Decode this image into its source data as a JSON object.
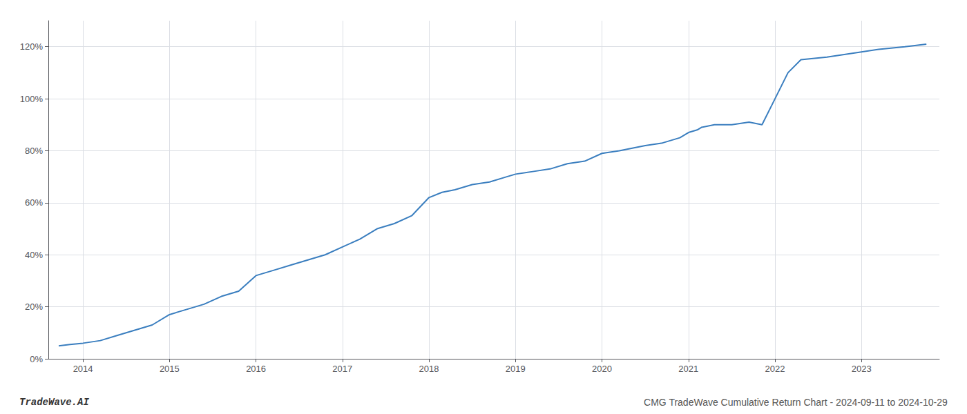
{
  "chart_data": {
    "type": "line",
    "x": [
      2013.72,
      2013.85,
      2014.0,
      2014.2,
      2014.4,
      2014.6,
      2014.8,
      2015.0,
      2015.2,
      2015.4,
      2015.6,
      2015.8,
      2016.0,
      2016.2,
      2016.4,
      2016.6,
      2016.8,
      2017.0,
      2017.2,
      2017.4,
      2017.6,
      2017.8,
      2018.0,
      2018.15,
      2018.3,
      2018.5,
      2018.7,
      2018.9,
      2019.0,
      2019.2,
      2019.4,
      2019.6,
      2019.8,
      2020.0,
      2020.2,
      2020.5,
      2020.7,
      2020.9,
      2021.0,
      2021.1,
      2021.15,
      2021.3,
      2021.5,
      2021.7,
      2021.85,
      2022.0,
      2022.15,
      2022.3,
      2022.6,
      2022.8,
      2023.0,
      2023.2,
      2023.5,
      2023.75
    ],
    "values": [
      5,
      5.5,
      6,
      7,
      9,
      11,
      13,
      17,
      19,
      21,
      24,
      26,
      32,
      34,
      36,
      38,
      40,
      43,
      46,
      50,
      52,
      55,
      62,
      64,
      65,
      67,
      68,
      70,
      71,
      72,
      73,
      75,
      76,
      79,
      80,
      82,
      83,
      85,
      87,
      88,
      89,
      90,
      90,
      91,
      90,
      100,
      110,
      115,
      116,
      117,
      118,
      119,
      120,
      121
    ],
    "color": "#3a7ebf",
    "xlim": [
      2013.6,
      2023.9
    ],
    "xticks": [
      2014,
      2015,
      2016,
      2017,
      2018,
      2019,
      2020,
      2021,
      2022,
      2023
    ],
    "ylim": [
      0,
      130
    ],
    "yticks": [
      {
        "value": 0,
        "label": "0%"
      },
      {
        "value": 20,
        "label": "20%"
      },
      {
        "value": 40,
        "label": "40%"
      },
      {
        "value": 60,
        "label": "60%"
      },
      {
        "value": 80,
        "label": "80%"
      },
      {
        "value": 100,
        "label": "100%"
      },
      {
        "value": 120,
        "label": "120%"
      }
    ],
    "grid": true,
    "annotations": [
      "TradeWave.AI",
      "CMG TradeWave Cumulative Return Chart - 2024-09-11 to 2024-10-29"
    ]
  }
}
